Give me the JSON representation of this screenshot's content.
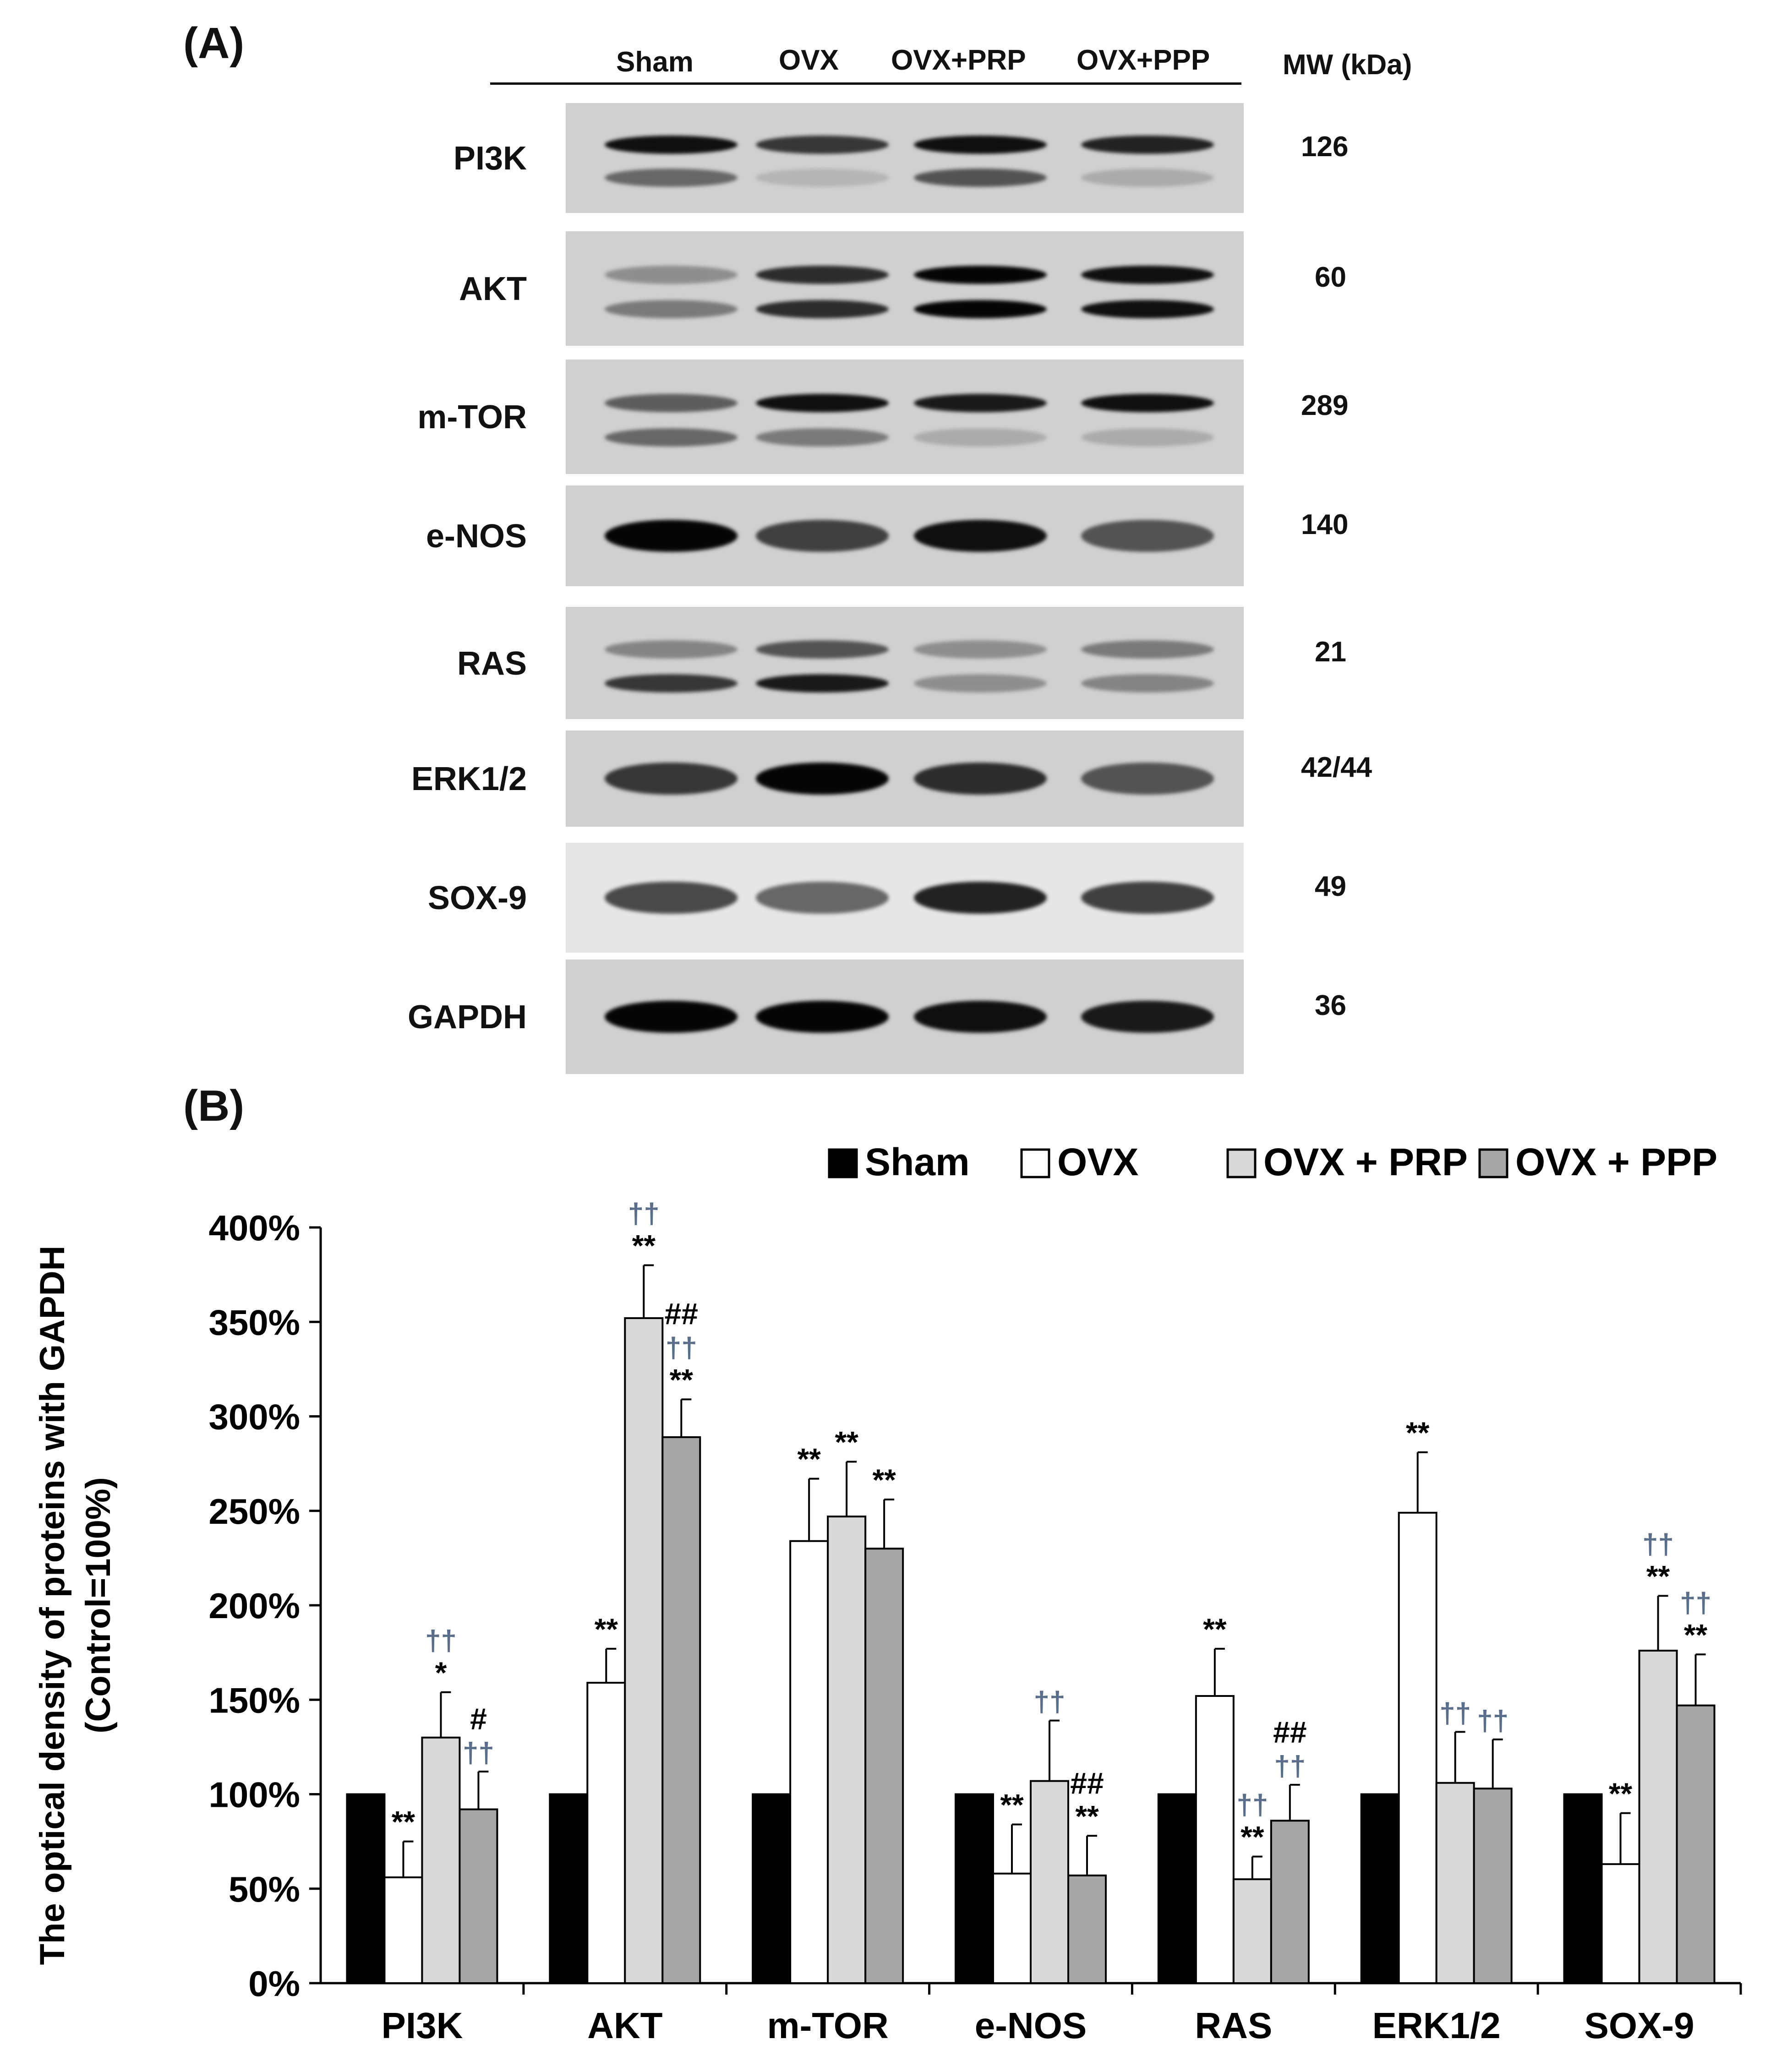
{
  "panel_a_label": "(A)",
  "panel_b_label": "(B)",
  "lanes": [
    "Sham",
    "OVX",
    "OVX+PRP",
    "OVX+PPP"
  ],
  "mw_header": "MW (kDa)",
  "blots": [
    {
      "protein": "PI3K",
      "mw": "126"
    },
    {
      "protein": "AKT",
      "mw": "60"
    },
    {
      "protein": "m-TOR",
      "mw": "289"
    },
    {
      "protein": "e-NOS",
      "mw": "140"
    },
    {
      "protein": "RAS",
      "mw": "21"
    },
    {
      "protein": "ERK1/2",
      "mw": "42/44"
    },
    {
      "protein": "SOX-9",
      "mw": "49"
    },
    {
      "protein": "GAPDH",
      "mw": "36"
    }
  ],
  "colors": {
    "sham": "#000000",
    "ovx": "#ffffff",
    "ovx_prp": "#d9d9d9",
    "ovx_ppp": "#a6a6a6"
  },
  "chart_data": {
    "type": "bar",
    "ylabel_line1": "The optical density of proteins with GAPDH",
    "ylabel_line2": "(Control=100%)",
    "ylim": [
      0,
      400
    ],
    "yticks": [
      "0%",
      "50%",
      "100%",
      "150%",
      "200%",
      "250%",
      "300%",
      "350%",
      "400%"
    ],
    "categories": [
      "PI3K",
      "AKT",
      "m-TOR",
      "e-NOS",
      "RAS",
      "ERK1/2",
      "SOX-9"
    ],
    "legend_placement": "top-right",
    "series": [
      {
        "name": "Sham",
        "values": [
          100,
          100,
          100,
          100,
          100,
          100,
          100
        ],
        "errors": [
          0,
          0,
          0,
          0,
          0,
          0,
          0
        ]
      },
      {
        "name": "OVX",
        "values": [
          56,
          159,
          234,
          58,
          152,
          249,
          63
        ],
        "errors": [
          19,
          18,
          33,
          26,
          25,
          32,
          27
        ]
      },
      {
        "name": "OVX + PRP",
        "values": [
          130,
          352,
          247,
          107,
          55,
          106,
          176
        ],
        "errors": [
          24,
          28,
          29,
          32,
          12,
          27,
          29
        ]
      },
      {
        "name": "OVX + PPP",
        "values": [
          92,
          289,
          230,
          57,
          86,
          103,
          147
        ],
        "errors": [
          20,
          20,
          26,
          21,
          19,
          26,
          27
        ]
      }
    ],
    "annotations": [
      [
        [],
        [
          "**"
        ],
        [
          "††",
          "*"
        ],
        [
          "#",
          "††"
        ]
      ],
      [
        [],
        [
          "**"
        ],
        [
          "††",
          "**"
        ],
        [
          "##",
          "††",
          "**"
        ]
      ],
      [
        [],
        [
          "**"
        ],
        [
          "**"
        ],
        [
          "**"
        ]
      ],
      [
        [],
        [
          "**"
        ],
        [
          "††"
        ],
        [
          "##",
          "**"
        ]
      ],
      [
        [],
        [
          "**"
        ],
        [
          "††",
          "**"
        ],
        [
          "##",
          "††"
        ]
      ],
      [
        [],
        [
          "**"
        ],
        [
          "††"
        ],
        [
          "††"
        ]
      ],
      [
        [],
        [
          "**"
        ],
        [
          "††",
          "**"
        ],
        [
          "††",
          "**"
        ]
      ]
    ]
  }
}
